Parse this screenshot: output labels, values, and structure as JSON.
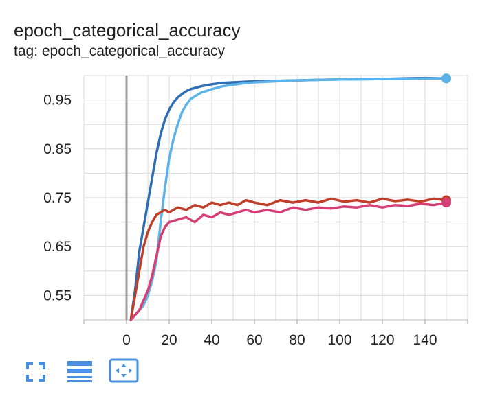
{
  "header": {
    "title": "epoch_categorical_accuracy",
    "subtitle": "tag: epoch_categorical_accuracy"
  },
  "toolbar": {
    "buttons": [
      {
        "icon": "fullscreen-icon"
      },
      {
        "icon": "data-selection-icon"
      },
      {
        "icon": "fit-domain-icon"
      }
    ],
    "accent_color": "#4a90e2"
  },
  "chart_data": {
    "type": "line",
    "xlabel": "",
    "ylabel": "",
    "xlim": [
      -20,
      160
    ],
    "ylim": [
      0.5,
      1.0
    ],
    "x_ticks": [
      0,
      20,
      40,
      60,
      80,
      100,
      120,
      140
    ],
    "y_ticks": [
      0.55,
      0.65,
      0.75,
      0.85,
      0.95
    ],
    "y_tick_labels": [
      "0.55",
      "0.65",
      "0.75",
      "0.85",
      "0.95"
    ],
    "grid": true,
    "series": [
      {
        "color": "#2f6eb5",
        "x": [
          2,
          4,
          6,
          8,
          10,
          12,
          14,
          16,
          18,
          20,
          22,
          24,
          26,
          28,
          30,
          35,
          40,
          45,
          50,
          55,
          60,
          70,
          80,
          90,
          100,
          110,
          120,
          130,
          140,
          150
        ],
        "values": [
          0.5,
          0.56,
          0.64,
          0.69,
          0.74,
          0.79,
          0.84,
          0.88,
          0.91,
          0.93,
          0.945,
          0.955,
          0.962,
          0.968,
          0.972,
          0.978,
          0.982,
          0.985,
          0.986,
          0.987,
          0.988,
          0.989,
          0.99,
          0.991,
          0.992,
          0.993,
          0.993,
          0.994,
          0.995,
          0.994
        ]
      },
      {
        "color": "#5bb3ea",
        "x": [
          2,
          4,
          6,
          8,
          10,
          12,
          14,
          16,
          18,
          20,
          22,
          24,
          26,
          28,
          30,
          35,
          40,
          45,
          50,
          55,
          60,
          70,
          80,
          90,
          100,
          110,
          120,
          130,
          140,
          150
        ],
        "values": [
          0.5,
          0.51,
          0.52,
          0.53,
          0.55,
          0.58,
          0.62,
          0.7,
          0.77,
          0.83,
          0.87,
          0.9,
          0.925,
          0.94,
          0.952,
          0.965,
          0.972,
          0.978,
          0.981,
          0.984,
          0.986,
          0.988,
          0.99,
          0.991,
          0.992,
          0.992,
          0.993,
          0.993,
          0.994,
          0.994
        ]
      },
      {
        "color": "#bf3f2b",
        "x": [
          2,
          4,
          6,
          8,
          10,
          12,
          14,
          16,
          18,
          20,
          24,
          28,
          32,
          36,
          40,
          44,
          48,
          52,
          56,
          60,
          66,
          72,
          78,
          84,
          90,
          96,
          102,
          108,
          114,
          120,
          126,
          132,
          138,
          144,
          150
        ],
        "values": [
          0.5,
          0.55,
          0.6,
          0.65,
          0.68,
          0.7,
          0.715,
          0.72,
          0.725,
          0.72,
          0.73,
          0.725,
          0.735,
          0.73,
          0.74,
          0.735,
          0.74,
          0.735,
          0.745,
          0.74,
          0.735,
          0.745,
          0.74,
          0.745,
          0.74,
          0.748,
          0.742,
          0.745,
          0.74,
          0.748,
          0.743,
          0.746,
          0.742,
          0.748,
          0.745
        ]
      },
      {
        "color": "#d63f73",
        "x": [
          2,
          4,
          6,
          8,
          10,
          12,
          14,
          16,
          18,
          20,
          24,
          28,
          32,
          36,
          40,
          44,
          48,
          52,
          56,
          60,
          66,
          72,
          78,
          84,
          90,
          96,
          102,
          108,
          114,
          120,
          126,
          132,
          138,
          144,
          150
        ],
        "values": [
          0.5,
          0.51,
          0.52,
          0.54,
          0.56,
          0.59,
          0.63,
          0.67,
          0.69,
          0.7,
          0.705,
          0.71,
          0.7,
          0.715,
          0.71,
          0.72,
          0.715,
          0.72,
          0.725,
          0.72,
          0.725,
          0.72,
          0.73,
          0.725,
          0.73,
          0.728,
          0.732,
          0.73,
          0.735,
          0.73,
          0.735,
          0.733,
          0.738,
          0.735,
          0.74
        ]
      }
    ]
  }
}
